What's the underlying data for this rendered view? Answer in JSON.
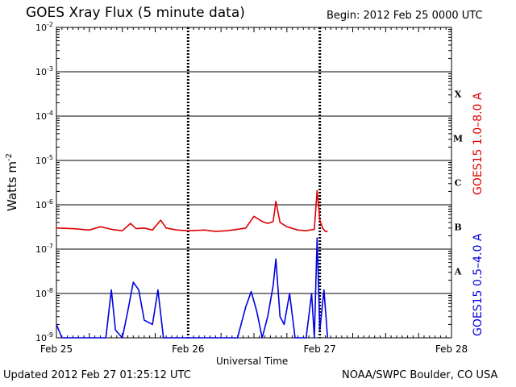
{
  "header": {
    "title": "GOES Xray Flux (5 minute data)",
    "begin": "Begin:  2012 Feb 25 0000 UTC"
  },
  "footer": {
    "updated": "Updated 2012 Feb 27 01:25:12 UTC",
    "credit": "NOAA/SWPC Boulder, CO USA"
  },
  "colors": {
    "long": "#e00000",
    "short": "#0000e0",
    "grid": "#000000"
  },
  "chart_data": {
    "type": "line",
    "title": "GOES Xray Flux (5 minute data)",
    "xlabel": "Universal Time",
    "ylabel": "Watts m",
    "ylabel_sup": "-2",
    "y_scale": "log",
    "ylim": [
      1e-09,
      0.01
    ],
    "xlim": [
      "2012-02-25",
      "2012-02-28"
    ],
    "grid": true,
    "y_ticks": [
      {
        "base": "10",
        "exp": "-2"
      },
      {
        "base": "10",
        "exp": "-3"
      },
      {
        "base": "10",
        "exp": "-4"
      },
      {
        "base": "10",
        "exp": "-5"
      },
      {
        "base": "10",
        "exp": "-6"
      },
      {
        "base": "10",
        "exp": "-7"
      },
      {
        "base": "10",
        "exp": "-8"
      },
      {
        "base": "10",
        "exp": "-9"
      }
    ],
    "x_ticks": [
      "Feb 25",
      "Feb 26",
      "Feb 27",
      "Feb 28"
    ],
    "flare_classes": [
      "X",
      "M",
      "C",
      "B",
      "A"
    ],
    "series": [
      {
        "name": "GOES15 1.0–8.0 A",
        "color": "#e00000",
        "points": [
          [
            "2012-02-25 00:00",
            3e-07
          ],
          [
            "2012-02-25 03:00",
            2.9e-07
          ],
          [
            "2012-02-25 06:00",
            2.7e-07
          ],
          [
            "2012-02-25 08:00",
            3.2e-07
          ],
          [
            "2012-02-25 10:00",
            2.8e-07
          ],
          [
            "2012-02-25 12:00",
            2.6e-07
          ],
          [
            "2012-02-25 13:30",
            3.8e-07
          ],
          [
            "2012-02-25 14:30",
            2.9e-07
          ],
          [
            "2012-02-25 16:00",
            3e-07
          ],
          [
            "2012-02-25 17:30",
            2.7e-07
          ],
          [
            "2012-02-25 19:00",
            4.5e-07
          ],
          [
            "2012-02-25 20:00",
            3e-07
          ],
          [
            "2012-02-25 22:00",
            2.7e-07
          ],
          [
            "2012-02-26 00:00",
            2.6e-07
          ],
          [
            "2012-02-26 03:00",
            2.7e-07
          ],
          [
            "2012-02-26 05:00",
            2.5e-07
          ],
          [
            "2012-02-26 07:00",
            2.6e-07
          ],
          [
            "2012-02-26 09:00",
            2.8e-07
          ],
          [
            "2012-02-26 10:30",
            3e-07
          ],
          [
            "2012-02-26 12:00",
            5.5e-07
          ],
          [
            "2012-02-26 13:30",
            4.2e-07
          ],
          [
            "2012-02-26 14:30",
            3.8e-07
          ],
          [
            "2012-02-26 15:30",
            4.2e-07
          ],
          [
            "2012-02-26 16:00",
            1.2e-06
          ],
          [
            "2012-02-26 16:45",
            4e-07
          ],
          [
            "2012-02-26 18:00",
            3.2e-07
          ],
          [
            "2012-02-26 20:00",
            2.7e-07
          ],
          [
            "2012-02-26 21:30",
            2.6e-07
          ],
          [
            "2012-02-26 23:00",
            2.8e-07
          ],
          [
            "2012-02-26 23:30",
            2.1e-06
          ],
          [
            "2012-02-27 00:00",
            4.5e-07
          ],
          [
            "2012-02-27 00:30",
            3e-07
          ],
          [
            "2012-02-27 01:00",
            2.5e-07
          ],
          [
            "2012-02-27 01:25",
            2.5e-07
          ]
        ]
      },
      {
        "name": "GOES15 0.5–4.0 A",
        "color": "#0000e0",
        "points": [
          [
            "2012-02-25 00:00",
            2e-09
          ],
          [
            "2012-02-25 01:00",
            1e-09
          ],
          [
            "2012-02-25 06:00",
            1e-09
          ],
          [
            "2012-02-25 09:00",
            1e-09
          ],
          [
            "2012-02-25 10:00",
            1.2e-08
          ],
          [
            "2012-02-25 10:45",
            1.5e-09
          ],
          [
            "2012-02-25 12:00",
            1e-09
          ],
          [
            "2012-02-25 13:00",
            4e-09
          ],
          [
            "2012-02-25 14:00",
            1.8e-08
          ],
          [
            "2012-02-25 15:00",
            1.2e-08
          ],
          [
            "2012-02-25 16:00",
            2.5e-09
          ],
          [
            "2012-02-25 17:30",
            2e-09
          ],
          [
            "2012-02-25 18:30",
            1.2e-08
          ],
          [
            "2012-02-25 19:30",
            1e-09
          ],
          [
            "2012-02-25 22:00",
            1e-09
          ],
          [
            "2012-02-26 02:00",
            1e-09
          ],
          [
            "2012-02-26 06:00",
            1e-09
          ],
          [
            "2012-02-26 09:00",
            1e-09
          ],
          [
            "2012-02-26 10:30",
            5e-09
          ],
          [
            "2012-02-26 11:30",
            1.1e-08
          ],
          [
            "2012-02-26 12:30",
            4e-09
          ],
          [
            "2012-02-26 13:30",
            1e-09
          ],
          [
            "2012-02-26 14:30",
            3e-09
          ],
          [
            "2012-02-26 15:30",
            1.5e-08
          ],
          [
            "2012-02-26 16:00",
            6e-08
          ],
          [
            "2012-02-26 16:45",
            3e-09
          ],
          [
            "2012-02-26 17:30",
            2e-09
          ],
          [
            "2012-02-26 18:30",
            1e-08
          ],
          [
            "2012-02-26 19:30",
            1e-09
          ],
          [
            "2012-02-26 21:30",
            1e-09
          ],
          [
            "2012-02-26 22:30",
            1e-08
          ],
          [
            "2012-02-26 23:00",
            1e-09
          ],
          [
            "2012-02-26 23:30",
            1.8e-07
          ],
          [
            "2012-02-27 00:00",
            1.5e-09
          ],
          [
            "2012-02-27 00:45",
            1.2e-08
          ],
          [
            "2012-02-27 01:25",
            1e-09
          ]
        ]
      }
    ]
  }
}
